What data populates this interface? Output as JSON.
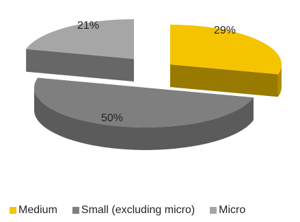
{
  "chart_data": {
    "type": "pie",
    "title": "",
    "categories": [
      "Medium",
      "Small (excluding micro)",
      "Micro"
    ],
    "values": [
      29,
      50,
      21
    ],
    "value_labels": [
      "29%",
      "50%",
      "21%"
    ],
    "unit": "%",
    "exploded": true,
    "three_d": true,
    "legend_position": "bottom",
    "colors": {
      "Medium": "#f5c400",
      "Small (excluding micro)": "#7f7f7f",
      "Micro": "#a6a6a6"
    }
  }
}
